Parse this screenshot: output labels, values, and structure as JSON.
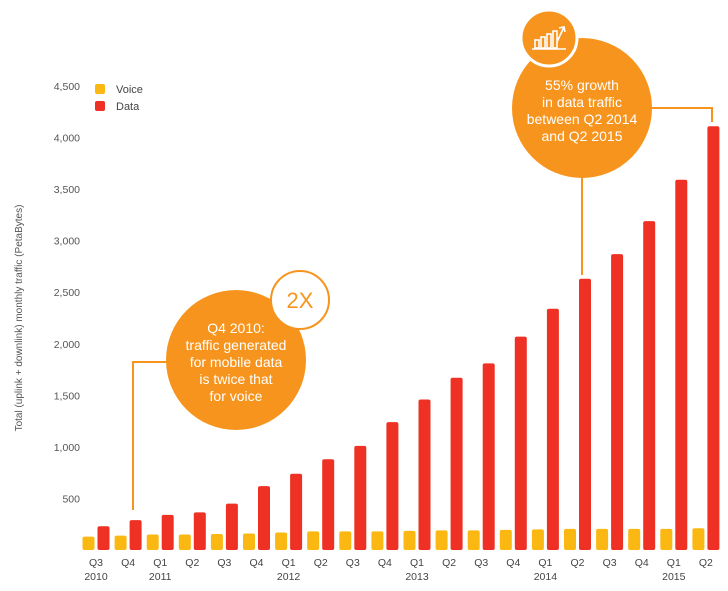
{
  "chart_data": {
    "type": "bar",
    "ylabel": "Total (uplink + downlink) monthly traffic (PetaBytes)",
    "ylim": [
      0,
      4500
    ],
    "yticks": [
      "500",
      "1,000",
      "1,500",
      "2,000",
      "2,500",
      "3,000",
      "3,500",
      "4,000",
      "4,500"
    ],
    "categories": [
      {
        "quarter": "Q3",
        "year": "2010"
      },
      {
        "quarter": "Q4",
        "year": ""
      },
      {
        "quarter": "Q1",
        "year": "2011"
      },
      {
        "quarter": "Q2",
        "year": ""
      },
      {
        "quarter": "Q3",
        "year": ""
      },
      {
        "quarter": "Q4",
        "year": ""
      },
      {
        "quarter": "Q1",
        "year": "2012"
      },
      {
        "quarter": "Q2",
        "year": ""
      },
      {
        "quarter": "Q3",
        "year": ""
      },
      {
        "quarter": "Q4",
        "year": ""
      },
      {
        "quarter": "Q1",
        "year": "2013"
      },
      {
        "quarter": "Q2",
        "year": ""
      },
      {
        "quarter": "Q3",
        "year": ""
      },
      {
        "quarter": "Q4",
        "year": ""
      },
      {
        "quarter": "Q1",
        "year": "2014"
      },
      {
        "quarter": "Q2",
        "year": ""
      },
      {
        "quarter": "Q3",
        "year": ""
      },
      {
        "quarter": "Q4",
        "year": ""
      },
      {
        "quarter": "Q1",
        "year": "2015"
      },
      {
        "quarter": "Q2",
        "year": ""
      }
    ],
    "series": [
      {
        "name": "Voice",
        "color": "#fbb812",
        "values": [
          130,
          140,
          150,
          150,
          155,
          160,
          170,
          180,
          180,
          180,
          185,
          190,
          190,
          195,
          200,
          205,
          205,
          205,
          205,
          210
        ]
      },
      {
        "name": "Data",
        "color": "#ee3124",
        "values": [
          230,
          290,
          340,
          365,
          450,
          620,
          740,
          880,
          1010,
          1240,
          1460,
          1670,
          1810,
          2070,
          2340,
          2630,
          2870,
          3190,
          3590,
          4110
        ]
      }
    ],
    "legend_position": "top-left",
    "grid": false,
    "callouts": [
      {
        "badge": "2X",
        "lines": [
          "Q4 2010:",
          "traffic generated",
          "for mobile data",
          "is twice that",
          "for voice"
        ]
      },
      {
        "badge_icon": "growth-chart-icon",
        "lines": [
          "55% growth",
          "in data traffic",
          "between Q2 2014",
          "and Q2 2015"
        ]
      }
    ],
    "accent_color": "#f7941d"
  }
}
